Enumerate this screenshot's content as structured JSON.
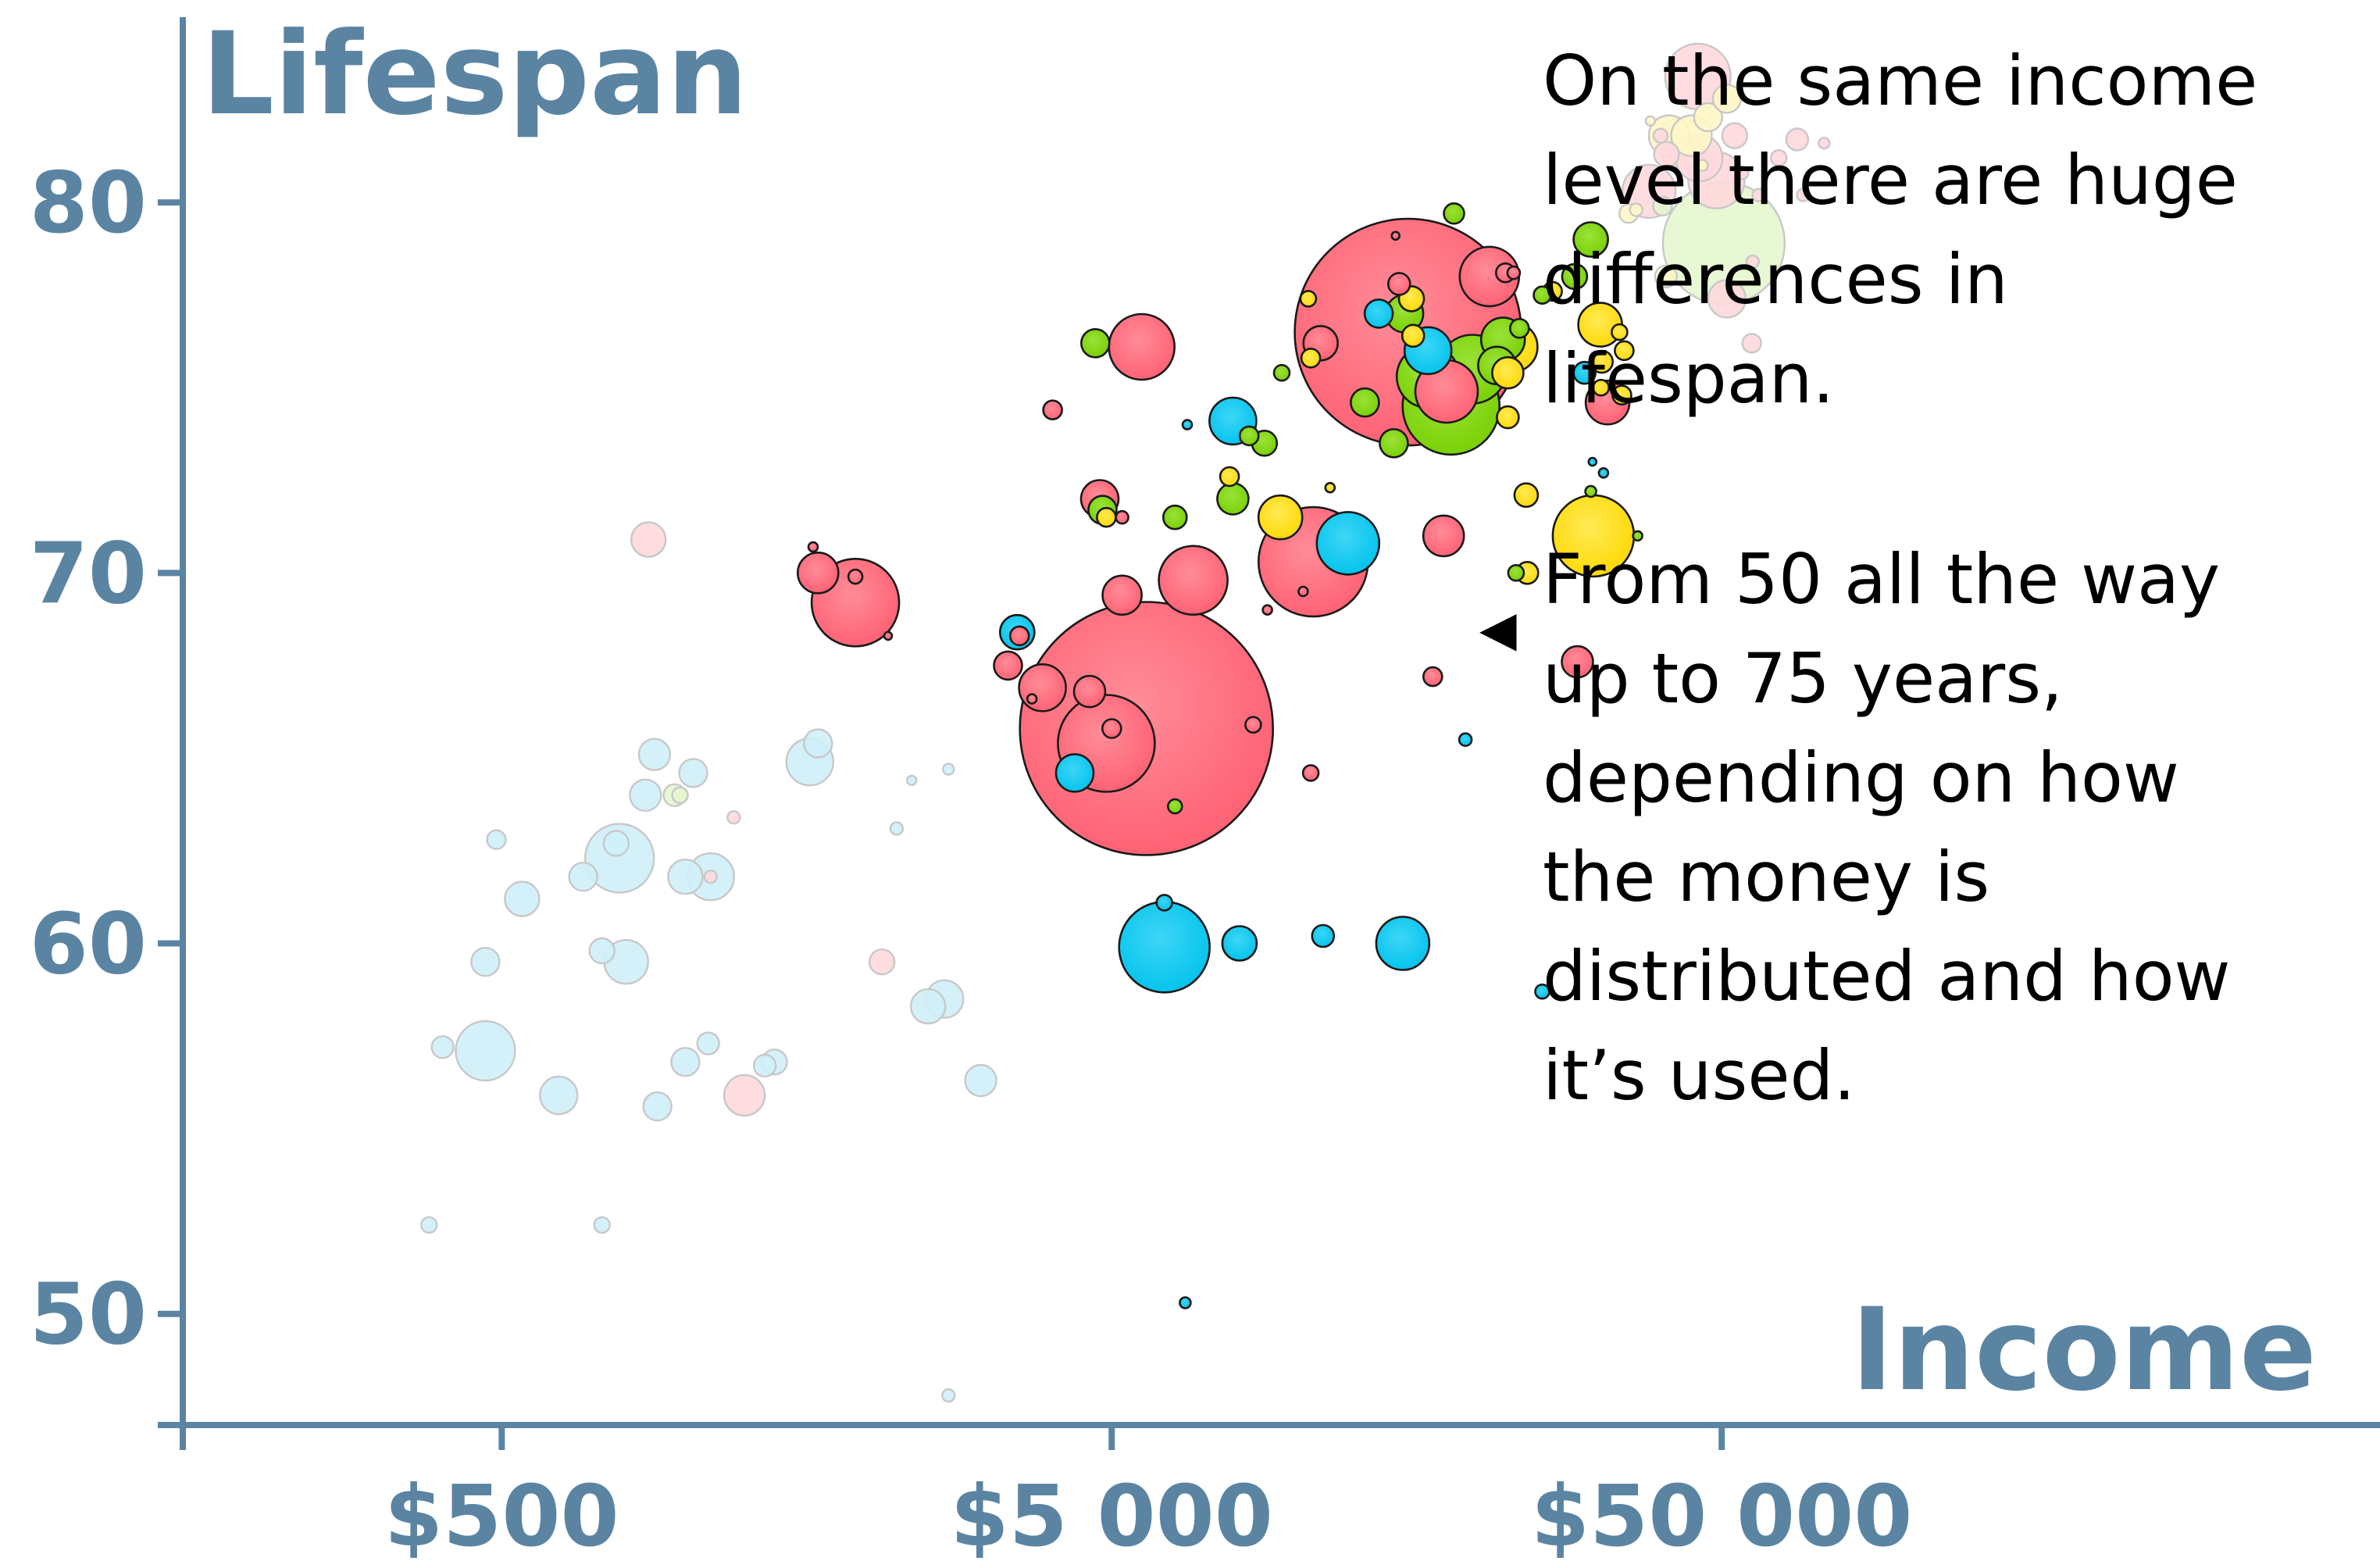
{
  "chart_data": {
    "type": "scatter",
    "title": "",
    "xlabel": "Income",
    "ylabel": "Lifespan",
    "x_scale": "log",
    "xlim": [
      150,
      600000
    ],
    "ylim": [
      47,
      85
    ],
    "x_ticks": [
      {
        "value": 500,
        "label": "$500"
      },
      {
        "value": 5000,
        "label": "$5 000"
      },
      {
        "value": 50000,
        "label": "$50 000"
      }
    ],
    "y_ticks": [
      {
        "value": 50,
        "label": "50"
      },
      {
        "value": 60,
        "label": "60"
      },
      {
        "value": 70,
        "label": "70"
      },
      {
        "value": 80,
        "label": "80"
      }
    ],
    "grid": false,
    "colors": {
      "red": "#ff5f72",
      "blue": "#00c5f0",
      "green": "#7bd400",
      "yellow": "#ffe000",
      "axis": "#5b84a3"
    },
    "notes": {
      "arrow": "◀"
    },
    "points": [
      {
        "x": 380,
        "y": 52.4,
        "size": 10,
        "color": "blue",
        "faded": true
      },
      {
        "x": 730,
        "y": 52.4,
        "size": 10,
        "color": "blue",
        "faded": true
      },
      {
        "x": 2700,
        "y": 47.8,
        "size": 8,
        "color": "blue",
        "faded": true
      },
      {
        "x": 400,
        "y": 57.2,
        "size": 14,
        "color": "blue",
        "faded": true
      },
      {
        "x": 470,
        "y": 57.1,
        "size": 38,
        "color": "blue",
        "faded": true
      },
      {
        "x": 620,
        "y": 55.9,
        "size": 24,
        "color": "blue",
        "faded": true
      },
      {
        "x": 900,
        "y": 55.6,
        "size": 18,
        "color": "blue",
        "faded": true
      },
      {
        "x": 1000,
        "y": 56.8,
        "size": 18,
        "color": "blue",
        "faded": true
      },
      {
        "x": 1090,
        "y": 57.3,
        "size": 14,
        "color": "blue",
        "faded": true
      },
      {
        "x": 1250,
        "y": 55.9,
        "size": 26,
        "color": "red",
        "faded": true
      },
      {
        "x": 1350,
        "y": 56.7,
        "size": 14,
        "color": "blue",
        "faded": true
      },
      {
        "x": 1400,
        "y": 56.8,
        "size": 16,
        "color": "blue",
        "faded": true
      },
      {
        "x": 2500,
        "y": 58.3,
        "size": 22,
        "color": "blue",
        "faded": true
      },
      {
        "x": 2660,
        "y": 58.5,
        "size": 24,
        "color": "blue",
        "faded": true
      },
      {
        "x": 3050,
        "y": 56.3,
        "size": 20,
        "color": "blue",
        "faded": true
      },
      {
        "x": 2100,
        "y": 59.5,
        "size": 16,
        "color": "red",
        "faded": true
      },
      {
        "x": 470,
        "y": 59.5,
        "size": 18,
        "color": "blue",
        "faded": true
      },
      {
        "x": 730,
        "y": 59.8,
        "size": 16,
        "color": "blue",
        "faded": true
      },
      {
        "x": 800,
        "y": 59.5,
        "size": 28,
        "color": "blue",
        "faded": true
      },
      {
        "x": 540,
        "y": 61.2,
        "size": 22,
        "color": "blue",
        "faded": true
      },
      {
        "x": 680,
        "y": 61.8,
        "size": 18,
        "color": "blue",
        "faded": true
      },
      {
        "x": 780,
        "y": 62.3,
        "size": 44,
        "color": "blue",
        "faded": true
      },
      {
        "x": 770,
        "y": 62.7,
        "size": 16,
        "color": "blue",
        "faded": true
      },
      {
        "x": 1000,
        "y": 61.8,
        "size": 22,
        "color": "blue",
        "faded": true
      },
      {
        "x": 1100,
        "y": 61.8,
        "size": 30,
        "color": "blue",
        "faded": true
      },
      {
        "x": 1100,
        "y": 61.8,
        "size": 8,
        "color": "red",
        "faded": true
      },
      {
        "x": 490,
        "y": 62.8,
        "size": 12,
        "color": "blue",
        "faded": true
      },
      {
        "x": 860,
        "y": 64.0,
        "size": 20,
        "color": "blue",
        "faded": true
      },
      {
        "x": 960,
        "y": 64.0,
        "size": 14,
        "color": "green",
        "faded": true
      },
      {
        "x": 980,
        "y": 64.0,
        "size": 10,
        "color": "green",
        "faded": true
      },
      {
        "x": 1030,
        "y": 64.6,
        "size": 18,
        "color": "blue",
        "faded": true
      },
      {
        "x": 1200,
        "y": 63.4,
        "size": 8,
        "color": "red",
        "faded": true
      },
      {
        "x": 1600,
        "y": 64.9,
        "size": 30,
        "color": "blue",
        "faded": true
      },
      {
        "x": 1650,
        "y": 65.4,
        "size": 18,
        "color": "blue",
        "faded": true
      },
      {
        "x": 2350,
        "y": 64.4,
        "size": 6,
        "color": "blue",
        "faded": true
      },
      {
        "x": 2700,
        "y": 64.7,
        "size": 7,
        "color": "blue",
        "faded": true
      },
      {
        "x": 2220,
        "y": 63.1,
        "size": 8,
        "color": "blue",
        "faded": true
      },
      {
        "x": 890,
        "y": 65.1,
        "size": 20,
        "color": "blue",
        "faded": true
      },
      {
        "x": 870,
        "y": 70.9,
        "size": 22,
        "color": "red",
        "faded": true
      },
      {
        "x": 5700,
        "y": 65.8,
        "size": 162,
        "color": "red"
      },
      {
        "x": 4900,
        "y": 65.4,
        "size": 62,
        "color": "red"
      },
      {
        "x": 5000,
        "y": 65.8,
        "size": 12,
        "color": "red"
      },
      {
        "x": 3850,
        "y": 66.9,
        "size": 30,
        "color": "red"
      },
      {
        "x": 4600,
        "y": 66.8,
        "size": 20,
        "color": "red"
      },
      {
        "x": 3700,
        "y": 66.6,
        "size": 6,
        "color": "red"
      },
      {
        "x": 4350,
        "y": 64.6,
        "size": 24,
        "color": "blue"
      },
      {
        "x": 3380,
        "y": 67.5,
        "size": 18,
        "color": "red"
      },
      {
        "x": 1900,
        "y": 69.2,
        "size": 56,
        "color": "red"
      },
      {
        "x": 1650,
        "y": 70.0,
        "size": 26,
        "color": "red"
      },
      {
        "x": 1900,
        "y": 69.9,
        "size": 9,
        "color": "red"
      },
      {
        "x": 1620,
        "y": 70.7,
        "size": 6,
        "color": "red"
      },
      {
        "x": 2150,
        "y": 68.3,
        "size": 5,
        "color": "red"
      },
      {
        "x": 3500,
        "y": 68.4,
        "size": 22,
        "color": "blue"
      },
      {
        "x": 3530,
        "y": 68.3,
        "size": 12,
        "color": "red"
      },
      {
        "x": 5200,
        "y": 69.4,
        "size": 25,
        "color": "red"
      },
      {
        "x": 6800,
        "y": 69.8,
        "size": 44,
        "color": "red"
      },
      {
        "x": 10700,
        "y": 70.3,
        "size": 70,
        "color": "red"
      },
      {
        "x": 10300,
        "y": 69.5,
        "size": 6,
        "color": "red"
      },
      {
        "x": 9000,
        "y": 69.0,
        "size": 6,
        "color": "red"
      },
      {
        "x": 12200,
        "y": 70.8,
        "size": 40,
        "color": "blue"
      },
      {
        "x": 9450,
        "y": 71.5,
        "size": 28,
        "color": "yellow"
      },
      {
        "x": 4830,
        "y": 71.7,
        "size": 18,
        "color": "green"
      },
      {
        "x": 4900,
        "y": 71.5,
        "size": 12,
        "color": "yellow"
      },
      {
        "x": 4780,
        "y": 72.0,
        "size": 24,
        "color": "red"
      },
      {
        "x": 5200,
        "y": 71.5,
        "size": 8,
        "color": "red"
      },
      {
        "x": 6350,
        "y": 71.5,
        "size": 15,
        "color": "green"
      },
      {
        "x": 7900,
        "y": 72.0,
        "size": 20,
        "color": "green"
      },
      {
        "x": 7800,
        "y": 72.6,
        "size": 12,
        "color": "yellow"
      },
      {
        "x": 11400,
        "y": 72.3,
        "size": 6,
        "color": "yellow"
      },
      {
        "x": 17500,
        "y": 71.0,
        "size": 26,
        "color": "red"
      },
      {
        "x": 23900,
        "y": 72.1,
        "size": 15,
        "color": "yellow"
      },
      {
        "x": 30800,
        "y": 71.0,
        "size": 52,
        "color": "yellow"
      },
      {
        "x": 30500,
        "y": 72.2,
        "size": 7,
        "color": "green"
      },
      {
        "x": 36400,
        "y": 71.0,
        "size": 6,
        "color": "green"
      },
      {
        "x": 23000,
        "y": 70.0,
        "size": 10,
        "color": "green"
      },
      {
        "x": 24000,
        "y": 70.0,
        "size": 14,
        "color": "yellow"
      },
      {
        "x": 30700,
        "y": 73.0,
        "size": 5,
        "color": "blue"
      },
      {
        "x": 29000,
        "y": 67.6,
        "size": 20,
        "color": "red"
      },
      {
        "x": 16800,
        "y": 67.2,
        "size": 12,
        "color": "red"
      },
      {
        "x": 10600,
        "y": 64.6,
        "size": 10,
        "color": "red"
      },
      {
        "x": 19000,
        "y": 65.5,
        "size": 8,
        "color": "blue"
      },
      {
        "x": 8530,
        "y": 65.9,
        "size": 10,
        "color": "red"
      },
      {
        "x": 6350,
        "y": 63.7,
        "size": 9,
        "color": "green"
      },
      {
        "x": 6100,
        "y": 59.9,
        "size": 58,
        "color": "blue"
      },
      {
        "x": 6100,
        "y": 61.1,
        "size": 10,
        "color": "blue"
      },
      {
        "x": 8100,
        "y": 60.0,
        "size": 22,
        "color": "blue"
      },
      {
        "x": 11100,
        "y": 60.2,
        "size": 14,
        "color": "blue"
      },
      {
        "x": 15000,
        "y": 60.0,
        "size": 34,
        "color": "blue"
      },
      {
        "x": 25400,
        "y": 58.7,
        "size": 9,
        "color": "blue"
      },
      {
        "x": 6600,
        "y": 50.3,
        "size": 7,
        "color": "blue"
      },
      {
        "x": 4000,
        "y": 74.4,
        "size": 12,
        "color": "red"
      },
      {
        "x": 5600,
        "y": 76.1,
        "size": 42,
        "color": "red"
      },
      {
        "x": 4700,
        "y": 76.2,
        "size": 18,
        "color": "green"
      },
      {
        "x": 6650,
        "y": 74.0,
        "size": 6,
        "color": "blue"
      },
      {
        "x": 7900,
        "y": 74.1,
        "size": 30,
        "color": "blue"
      },
      {
        "x": 8400,
        "y": 73.7,
        "size": 12,
        "color": "green"
      },
      {
        "x": 8900,
        "y": 73.5,
        "size": 16,
        "color": "green"
      },
      {
        "x": 13000,
        "y": 74.6,
        "size": 18,
        "color": "green"
      },
      {
        "x": 14500,
        "y": 73.5,
        "size": 18,
        "color": "green"
      },
      {
        "x": 9500,
        "y": 75.4,
        "size": 10,
        "color": "green"
      },
      {
        "x": 10600,
        "y": 75.8,
        "size": 12,
        "color": "yellow"
      },
      {
        "x": 11000,
        "y": 76.2,
        "size": 22,
        "color": "red"
      },
      {
        "x": 10500,
        "y": 77.4,
        "size": 10,
        "color": "yellow"
      },
      {
        "x": 15300,
        "y": 76.5,
        "size": 145,
        "color": "red"
      },
      {
        "x": 13700,
        "y": 77.0,
        "size": 18,
        "color": "blue"
      },
      {
        "x": 14600,
        "y": 79.1,
        "size": 5,
        "color": "red"
      },
      {
        "x": 14800,
        "y": 77.8,
        "size": 14,
        "color": "red"
      },
      {
        "x": 15100,
        "y": 77.0,
        "size": 24,
        "color": "green"
      },
      {
        "x": 15500,
        "y": 77.4,
        "size": 16,
        "color": "yellow"
      },
      {
        "x": 15600,
        "y": 76.4,
        "size": 14,
        "color": "yellow"
      },
      {
        "x": 16500,
        "y": 76.0,
        "size": 30,
        "color": "blue"
      },
      {
        "x": 16500,
        "y": 75.3,
        "size": 40,
        "color": "green"
      },
      {
        "x": 18000,
        "y": 74.5,
        "size": 62,
        "color": "green"
      },
      {
        "x": 17700,
        "y": 74.9,
        "size": 40,
        "color": "red"
      },
      {
        "x": 19500,
        "y": 75.5,
        "size": 44,
        "color": "green"
      },
      {
        "x": 21400,
        "y": 75.6,
        "size": 24,
        "color": "green"
      },
      {
        "x": 22300,
        "y": 75.4,
        "size": 20,
        "color": "yellow"
      },
      {
        "x": 22700,
        "y": 76.1,
        "size": 32,
        "color": "yellow"
      },
      {
        "x": 21900,
        "y": 76.3,
        "size": 28,
        "color": "green"
      },
      {
        "x": 23300,
        "y": 76.6,
        "size": 12,
        "color": "green"
      },
      {
        "x": 22300,
        "y": 74.2,
        "size": 14,
        "color": "yellow"
      },
      {
        "x": 18200,
        "y": 79.7,
        "size": 13,
        "color": "green"
      },
      {
        "x": 20800,
        "y": 78.0,
        "size": 38,
        "color": "red"
      },
      {
        "x": 22100,
        "y": 78.1,
        "size": 12,
        "color": "red"
      },
      {
        "x": 22800,
        "y": 78.1,
        "size": 8,
        "color": "red"
      },
      {
        "x": 25400,
        "y": 77.5,
        "size": 11,
        "color": "green"
      },
      {
        "x": 26400,
        "y": 77.6,
        "size": 12,
        "color": "yellow"
      },
      {
        "x": 28700,
        "y": 78.0,
        "size": 16,
        "color": "green"
      },
      {
        "x": 30500,
        "y": 79.0,
        "size": 22,
        "color": "green"
      },
      {
        "x": 31600,
        "y": 76.7,
        "size": 28,
        "color": "yellow"
      },
      {
        "x": 31800,
        "y": 75.7,
        "size": 14,
        "color": "yellow"
      },
      {
        "x": 29800,
        "y": 75.4,
        "size": 14,
        "color": "blue"
      },
      {
        "x": 31700,
        "y": 75.0,
        "size": 10,
        "color": "yellow"
      },
      {
        "x": 32500,
        "y": 74.6,
        "size": 28,
        "color": "red"
      },
      {
        "x": 34300,
        "y": 74.8,
        "size": 12,
        "color": "yellow"
      },
      {
        "x": 34000,
        "y": 76.5,
        "size": 10,
        "color": "yellow"
      },
      {
        "x": 34600,
        "y": 76.0,
        "size": 12,
        "color": "yellow"
      },
      {
        "x": 32000,
        "y": 72.7,
        "size": 6,
        "color": "blue"
      },
      {
        "x": 45700,
        "y": 83.4,
        "size": 42,
        "color": "red",
        "faded": true
      },
      {
        "x": 41000,
        "y": 81.8,
        "size": 26,
        "color": "yellow",
        "faded": true
      },
      {
        "x": 43000,
        "y": 81.6,
        "size": 32,
        "color": "yellow",
        "faded": true
      },
      {
        "x": 44600,
        "y": 81.8,
        "size": 26,
        "color": "yellow",
        "faded": true
      },
      {
        "x": 47500,
        "y": 82.3,
        "size": 18,
        "color": "yellow",
        "faded": true
      },
      {
        "x": 45900,
        "y": 81.2,
        "size": 30,
        "color": "red",
        "faded": true
      },
      {
        "x": 49000,
        "y": 80.6,
        "size": 36,
        "color": "red",
        "faded": true
      },
      {
        "x": 52500,
        "y": 81.8,
        "size": 16,
        "color": "red",
        "faded": true
      },
      {
        "x": 51000,
        "y": 82.8,
        "size": 18,
        "color": "yellow",
        "faded": true
      },
      {
        "x": 40600,
        "y": 81.3,
        "size": 16,
        "color": "red",
        "faded": true
      },
      {
        "x": 39700,
        "y": 81.8,
        "size": 9,
        "color": "red",
        "faded": true
      },
      {
        "x": 38200,
        "y": 82.2,
        "size": 6,
        "color": "yellow",
        "faded": true
      },
      {
        "x": 38000,
        "y": 80.3,
        "size": 34,
        "color": "red",
        "faded": true
      },
      {
        "x": 35200,
        "y": 79.7,
        "size": 12,
        "color": "yellow",
        "faded": true
      },
      {
        "x": 36200,
        "y": 79.8,
        "size": 8,
        "color": "yellow",
        "faded": true
      },
      {
        "x": 40000,
        "y": 79.9,
        "size": 12,
        "color": "green",
        "faded": true
      },
      {
        "x": 50400,
        "y": 78.9,
        "size": 78,
        "color": "green",
        "faded": true
      },
      {
        "x": 51000,
        "y": 77.4,
        "size": 24,
        "color": "red",
        "faded": true
      },
      {
        "x": 56000,
        "y": 76.2,
        "size": 12,
        "color": "red",
        "faded": true
      },
      {
        "x": 57500,
        "y": 80.2,
        "size": 8,
        "color": "red",
        "faded": true
      },
      {
        "x": 62000,
        "y": 81.2,
        "size": 10,
        "color": "red",
        "faded": true
      },
      {
        "x": 66500,
        "y": 81.7,
        "size": 14,
        "color": "red",
        "faded": true
      },
      {
        "x": 68000,
        "y": 80.2,
        "size": 8,
        "color": "red",
        "faded": true
      },
      {
        "x": 73600,
        "y": 81.6,
        "size": 7,
        "color": "red",
        "faded": true
      },
      {
        "x": 54000,
        "y": 80.8,
        "size": 8,
        "color": "red",
        "faded": true
      },
      {
        "x": 46500,
        "y": 81.0,
        "size": 7,
        "color": "yellow",
        "faded": true
      },
      {
        "x": 40500,
        "y": 78.0,
        "size": 14,
        "color": "yellow",
        "faded": true
      },
      {
        "x": 56200,
        "y": 78.4,
        "size": 8,
        "color": "red",
        "faded": true
      }
    ]
  },
  "annotation": {
    "paragraph1": "On the same income\nlevel there are huge\ndifferences in\nlifespan.",
    "paragraph2": "From 50 all the way\nup to 75 years,\ndepending on how\nthe money is\ndistributed and how\nit’s used."
  }
}
